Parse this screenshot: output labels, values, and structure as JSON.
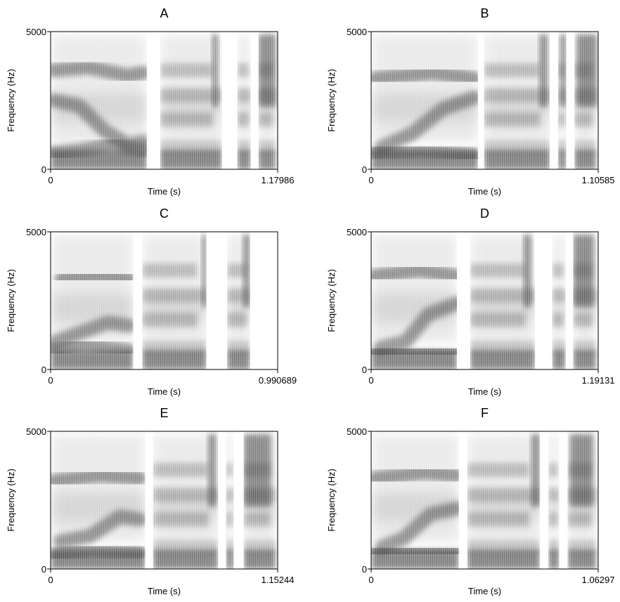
{
  "chart_data": [
    {
      "type": "heatmap",
      "title": "A",
      "xlabel": "Time (s)",
      "ylabel": "Frequency (Hz)",
      "xlim": [
        0,
        1.17986
      ],
      "ylim": [
        0,
        5000
      ],
      "x_ticks": [
        "0",
        "1.17986"
      ],
      "y_ticks": [
        "0",
        "5000"
      ],
      "colormap": "grayscale (dark = high intensity)",
      "silent_gaps_s": [
        [
          0.5,
          0.57
        ],
        [
          0.89,
          0.97
        ],
        [
          1.04,
          1.08
        ]
      ],
      "dark_bursts_s": [
        [
          0.84,
          0.87
        ],
        [
          1.08,
          1.17
        ]
      ],
      "formant_tracks": [
        {
          "name": "F1",
          "x": [
            0.02,
            0.15,
            0.32,
            0.48
          ],
          "y": [
            600,
            700,
            900,
            700
          ]
        },
        {
          "name": "F2",
          "x": [
            0.02,
            0.15,
            0.28,
            0.4,
            0.48
          ],
          "y": [
            2500,
            2300,
            1400,
            900,
            1000
          ]
        },
        {
          "name": "F3",
          "x": [
            0.02,
            0.2,
            0.4,
            0.48
          ],
          "y": [
            3600,
            3700,
            3400,
            3500
          ]
        }
      ]
    },
    {
      "type": "heatmap",
      "title": "B",
      "xlabel": "Time (s)",
      "ylabel": "Frequency (Hz)",
      "xlim": [
        0,
        1.10585
      ],
      "ylim": [
        0,
        5000
      ],
      "x_ticks": [
        "0",
        "1.10585"
      ],
      "y_ticks": [
        "0",
        "5000"
      ],
      "colormap": "grayscale (dark = high intensity)",
      "silent_gaps_s": [
        [
          0.52,
          0.55
        ],
        [
          0.87,
          0.91
        ],
        [
          0.95,
          0.99
        ]
      ],
      "dark_bursts_s": [
        [
          0.82,
          0.86
        ],
        [
          0.92,
          0.95
        ],
        [
          1.0,
          1.1
        ]
      ],
      "formant_tracks": [
        {
          "name": "F1",
          "x": [
            0.02,
            0.25,
            0.5
          ],
          "y": [
            600,
            700,
            500
          ]
        },
        {
          "name": "F2",
          "x": [
            0.05,
            0.2,
            0.35,
            0.5
          ],
          "y": [
            800,
            1300,
            2200,
            2600
          ]
        },
        {
          "name": "F3",
          "x": [
            0.02,
            0.3,
            0.5
          ],
          "y": [
            3300,
            3500,
            3300
          ]
        }
      ]
    },
    {
      "type": "heatmap",
      "title": "C",
      "xlabel": "Time (s)",
      "ylabel": "Frequency (Hz)",
      "xlim": [
        0,
        0.990689
      ],
      "ylim": [
        0,
        5000
      ],
      "x_ticks": [
        "0",
        "0.990689"
      ],
      "y_ticks": [
        "0",
        "5000"
      ],
      "colormap": "grayscale (dark = high intensity)",
      "silent_gaps_s": [
        [
          0.36,
          0.4
        ],
        [
          0.68,
          0.77
        ],
        [
          0.87,
          0.99
        ]
      ],
      "dark_bursts_s": [
        [
          0.66,
          0.68
        ],
        [
          0.84,
          0.87
        ]
      ],
      "formant_tracks": [
        {
          "name": "F1",
          "x": [
            0.02,
            0.15,
            0.34
          ],
          "y": [
            700,
            900,
            700
          ]
        },
        {
          "name": "F2",
          "x": [
            0.02,
            0.15,
            0.25,
            0.34
          ],
          "y": [
            1000,
            1400,
            1700,
            1600
          ]
        },
        {
          "name": "F3",
          "x": [
            0.05,
            0.2,
            0.34
          ],
          "y": [
            3300,
            3400,
            3300
          ]
        }
      ]
    },
    {
      "type": "heatmap",
      "title": "D",
      "xlabel": "Time (s)",
      "ylabel": "Frequency (Hz)",
      "xlim": [
        0,
        1.19131
      ],
      "ylim": [
        0,
        5000
      ],
      "x_ticks": [
        "0",
        "1.19131"
      ],
      "y_ticks": [
        "0",
        "5000"
      ],
      "colormap": "grayscale (dark = high intensity)",
      "silent_gaps_s": [
        [
          0.45,
          0.52
        ],
        [
          0.86,
          0.95
        ],
        [
          1.02,
          1.06
        ]
      ],
      "dark_bursts_s": [
        [
          0.8,
          0.84
        ],
        [
          1.06,
          1.17
        ]
      ],
      "formant_tracks": [
        {
          "name": "F1",
          "x": [
            0.02,
            0.2,
            0.45
          ],
          "y": [
            600,
            700,
            600
          ]
        },
        {
          "name": "F2",
          "x": [
            0.05,
            0.18,
            0.3,
            0.45
          ],
          "y": [
            800,
            1000,
            2000,
            2400
          ]
        },
        {
          "name": "F3",
          "x": [
            0.02,
            0.25,
            0.45
          ],
          "y": [
            3400,
            3600,
            3400
          ]
        }
      ]
    },
    {
      "type": "heatmap",
      "title": "E",
      "xlabel": "Time (s)",
      "ylabel": "Frequency (Hz)",
      "xlim": [
        0,
        1.15244
      ],
      "ylim": [
        0,
        5000
      ],
      "x_ticks": [
        "0",
        "1.15244"
      ],
      "y_ticks": [
        "0",
        "5000"
      ],
      "colormap": "grayscale (dark = high intensity)",
      "silent_gaps_s": [
        [
          0.48,
          0.52
        ],
        [
          0.85,
          0.89
        ],
        [
          0.93,
          0.98
        ]
      ],
      "dark_bursts_s": [
        [
          0.8,
          0.84
        ],
        [
          0.98,
          1.12
        ]
      ],
      "formant_tracks": [
        {
          "name": "F1",
          "x": [
            0.02,
            0.2,
            0.45
          ],
          "y": [
            500,
            700,
            600
          ]
        },
        {
          "name": "F2",
          "x": [
            0.05,
            0.2,
            0.35,
            0.45
          ],
          "y": [
            1000,
            1200,
            1900,
            1800
          ]
        },
        {
          "name": "F3",
          "x": [
            0.02,
            0.25,
            0.45
          ],
          "y": [
            3200,
            3400,
            3300
          ]
        }
      ]
    },
    {
      "type": "heatmap",
      "title": "F",
      "xlabel": "Time (s)",
      "ylabel": "Frequency (Hz)",
      "xlim": [
        0,
        1.06297
      ],
      "ylim": [
        0,
        5000
      ],
      "x_ticks": [
        "0",
        "1.06297"
      ],
      "y_ticks": [
        "0",
        "5000"
      ],
      "colormap": "grayscale (dark = high intensity)",
      "silent_gaps_s": [
        [
          0.41,
          0.45
        ],
        [
          0.79,
          0.83
        ],
        [
          0.88,
          0.92
        ]
      ],
      "dark_bursts_s": [
        [
          0.75,
          0.79
        ],
        [
          0.93,
          1.04
        ]
      ],
      "formant_tracks": [
        {
          "name": "F1",
          "x": [
            0.02,
            0.2,
            0.4
          ],
          "y": [
            600,
            700,
            600
          ]
        },
        {
          "name": "F2",
          "x": [
            0.05,
            0.15,
            0.28,
            0.4
          ],
          "y": [
            800,
            1100,
            2000,
            2200
          ]
        },
        {
          "name": "F3",
          "x": [
            0.02,
            0.25,
            0.4
          ],
          "y": [
            3300,
            3500,
            3400
          ]
        }
      ]
    }
  ]
}
